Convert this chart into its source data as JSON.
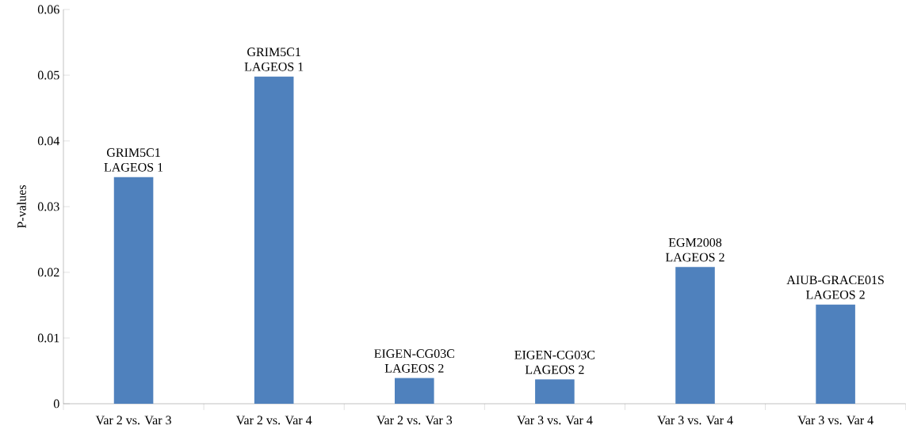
{
  "chart_data": {
    "type": "bar",
    "ylabel": "P-values",
    "categories": [
      "Var 2 vs. Var 3",
      "Var 2 vs. Var 4",
      "Var 2 vs. Var 3",
      "Var 3 vs. Var 4",
      "Var 3 vs. Var 4",
      "Var 3 vs. Var 4"
    ],
    "values": [
      0.0345,
      0.0498,
      0.0039,
      0.0037,
      0.0208,
      0.0151
    ],
    "color": "#4f81bd",
    "ylim": [
      0,
      0.06
    ],
    "yticks": [
      0,
      0.01,
      0.02,
      0.03,
      0.04,
      0.05,
      0.06
    ],
    "grid": false,
    "legend": false,
    "annotations": [
      "GRIM5C1",
      "LAGEOS 1",
      "GRIM5C1",
      "LAGEOS 1",
      "EIGEN-CG03C",
      "LAGEOS 2",
      "EIGEN-CG03C",
      "LAGEOS 2",
      "EGM2008",
      "LAGEOS 2",
      "AIUB-GRACE01S",
      "LAGEOS 2"
    ]
  }
}
